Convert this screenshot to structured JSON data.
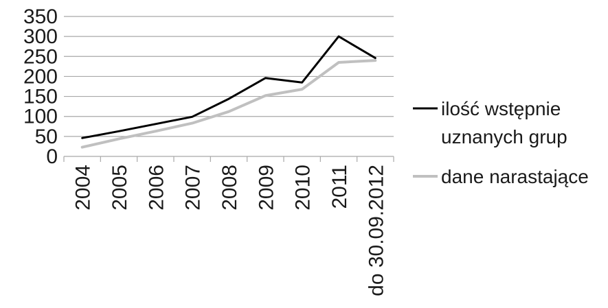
{
  "chart_data": {
    "type": "line",
    "categories": [
      "2004",
      "2005",
      "2006",
      "2007",
      "2008",
      "2009",
      "2010",
      "2011",
      "do 30.09.2012"
    ],
    "series": [
      {
        "name": "ilość wstępnie uznanych grup",
        "name_lines": [
          "ilość wstępnie",
          "uznanych grup"
        ],
        "color": "#000000",
        "values": [
          46,
          63,
          81,
          99,
          144,
          196,
          185,
          300,
          246
        ]
      },
      {
        "name": "dane narastające",
        "name_lines": [
          "dane narastające"
        ],
        "color": "#c0c0c0",
        "values": [
          23,
          44,
          63,
          83,
          112,
          152,
          168,
          235,
          240
        ]
      }
    ],
    "yticks": [
      "0",
      "50",
      "100",
      "150",
      "200",
      "250",
      "300",
      "350"
    ],
    "ylim": [
      0,
      350
    ],
    "grid": true,
    "legend_position": "right",
    "title": "",
    "xlabel": "",
    "ylabel": ""
  }
}
